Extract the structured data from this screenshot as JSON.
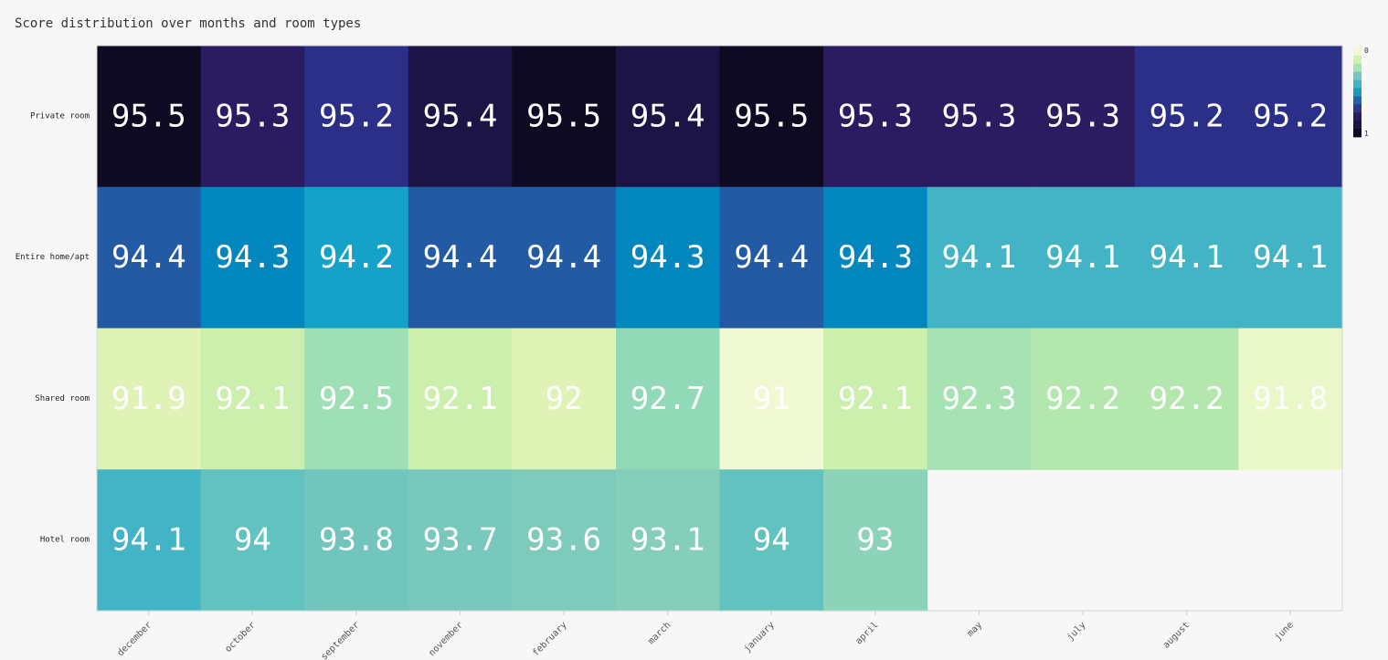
{
  "chart_data": {
    "type": "heatmap",
    "title": "Score distribution over months and room types",
    "x_categories": [
      "december",
      "october",
      "september",
      "november",
      "february",
      "march",
      "january",
      "april",
      "may",
      "july",
      "august",
      "june"
    ],
    "y_categories": [
      "Private room",
      "Entire home/apt",
      "Shared room",
      "Hotel room"
    ],
    "values": [
      [
        95.5,
        95.3,
        95.2,
        95.4,
        95.5,
        95.4,
        95.5,
        95.3,
        95.3,
        95.3,
        95.2,
        95.2
      ],
      [
        94.4,
        94.3,
        94.2,
        94.4,
        94.4,
        94.3,
        94.4,
        94.3,
        94.1,
        94.1,
        94.1,
        94.1
      ],
      [
        91.9,
        92.1,
        92.5,
        92.1,
        92,
        92.7,
        91,
        92.1,
        92.3,
        92.2,
        92.2,
        91.8
      ],
      [
        94.1,
        94,
        93.8,
        93.7,
        93.6,
        93.1,
        94,
        93,
        null,
        null,
        null,
        null
      ]
    ],
    "cell_colors": [
      [
        "#0d0a21",
        "#2b1c62",
        "#2b2f88",
        "#1c1445",
        "#0d0a21",
        "#1c1445",
        "#0d0a21",
        "#2b1c62",
        "#2b1c62",
        "#2b1c62",
        "#2b2f88",
        "#2b2f88"
      ],
      [
        "#225aa4",
        "#0286be",
        "#14a2c9",
        "#225aa4",
        "#225aa4",
        "#0286be",
        "#225aa4",
        "#0286be",
        "#43b4c6",
        "#43b4c6",
        "#43b4c6",
        "#43b4c6"
      ],
      [
        "#e0f3b7",
        "#cdefad",
        "#9edfb5",
        "#cdefad",
        "#e0f3b7",
        "#92d9b7",
        "#f0f9d2",
        "#cdefad",
        "#a7e2b2",
        "#b3e7ad",
        "#b3e7ad",
        "#eaf7c8"
      ],
      [
        "#43b4c6",
        "#62c2bf",
        "#71c5bd",
        "#78c8bd",
        "#7fcbbb",
        "#85cfba",
        "#62c2bf",
        "#8cd3ba",
        null,
        null,
        null,
        null
      ]
    ],
    "colorbar": {
      "tick_labels": [
        "0",
        "1"
      ],
      "colors": [
        "#f0f9d2",
        "#d3f0ae",
        "#a7e2b2",
        "#76c8bd",
        "#43b4c6",
        "#1d97c4",
        "#2163a9",
        "#2a3990",
        "#2b1c62",
        "#1c1445",
        "#0d0a21"
      ]
    }
  }
}
